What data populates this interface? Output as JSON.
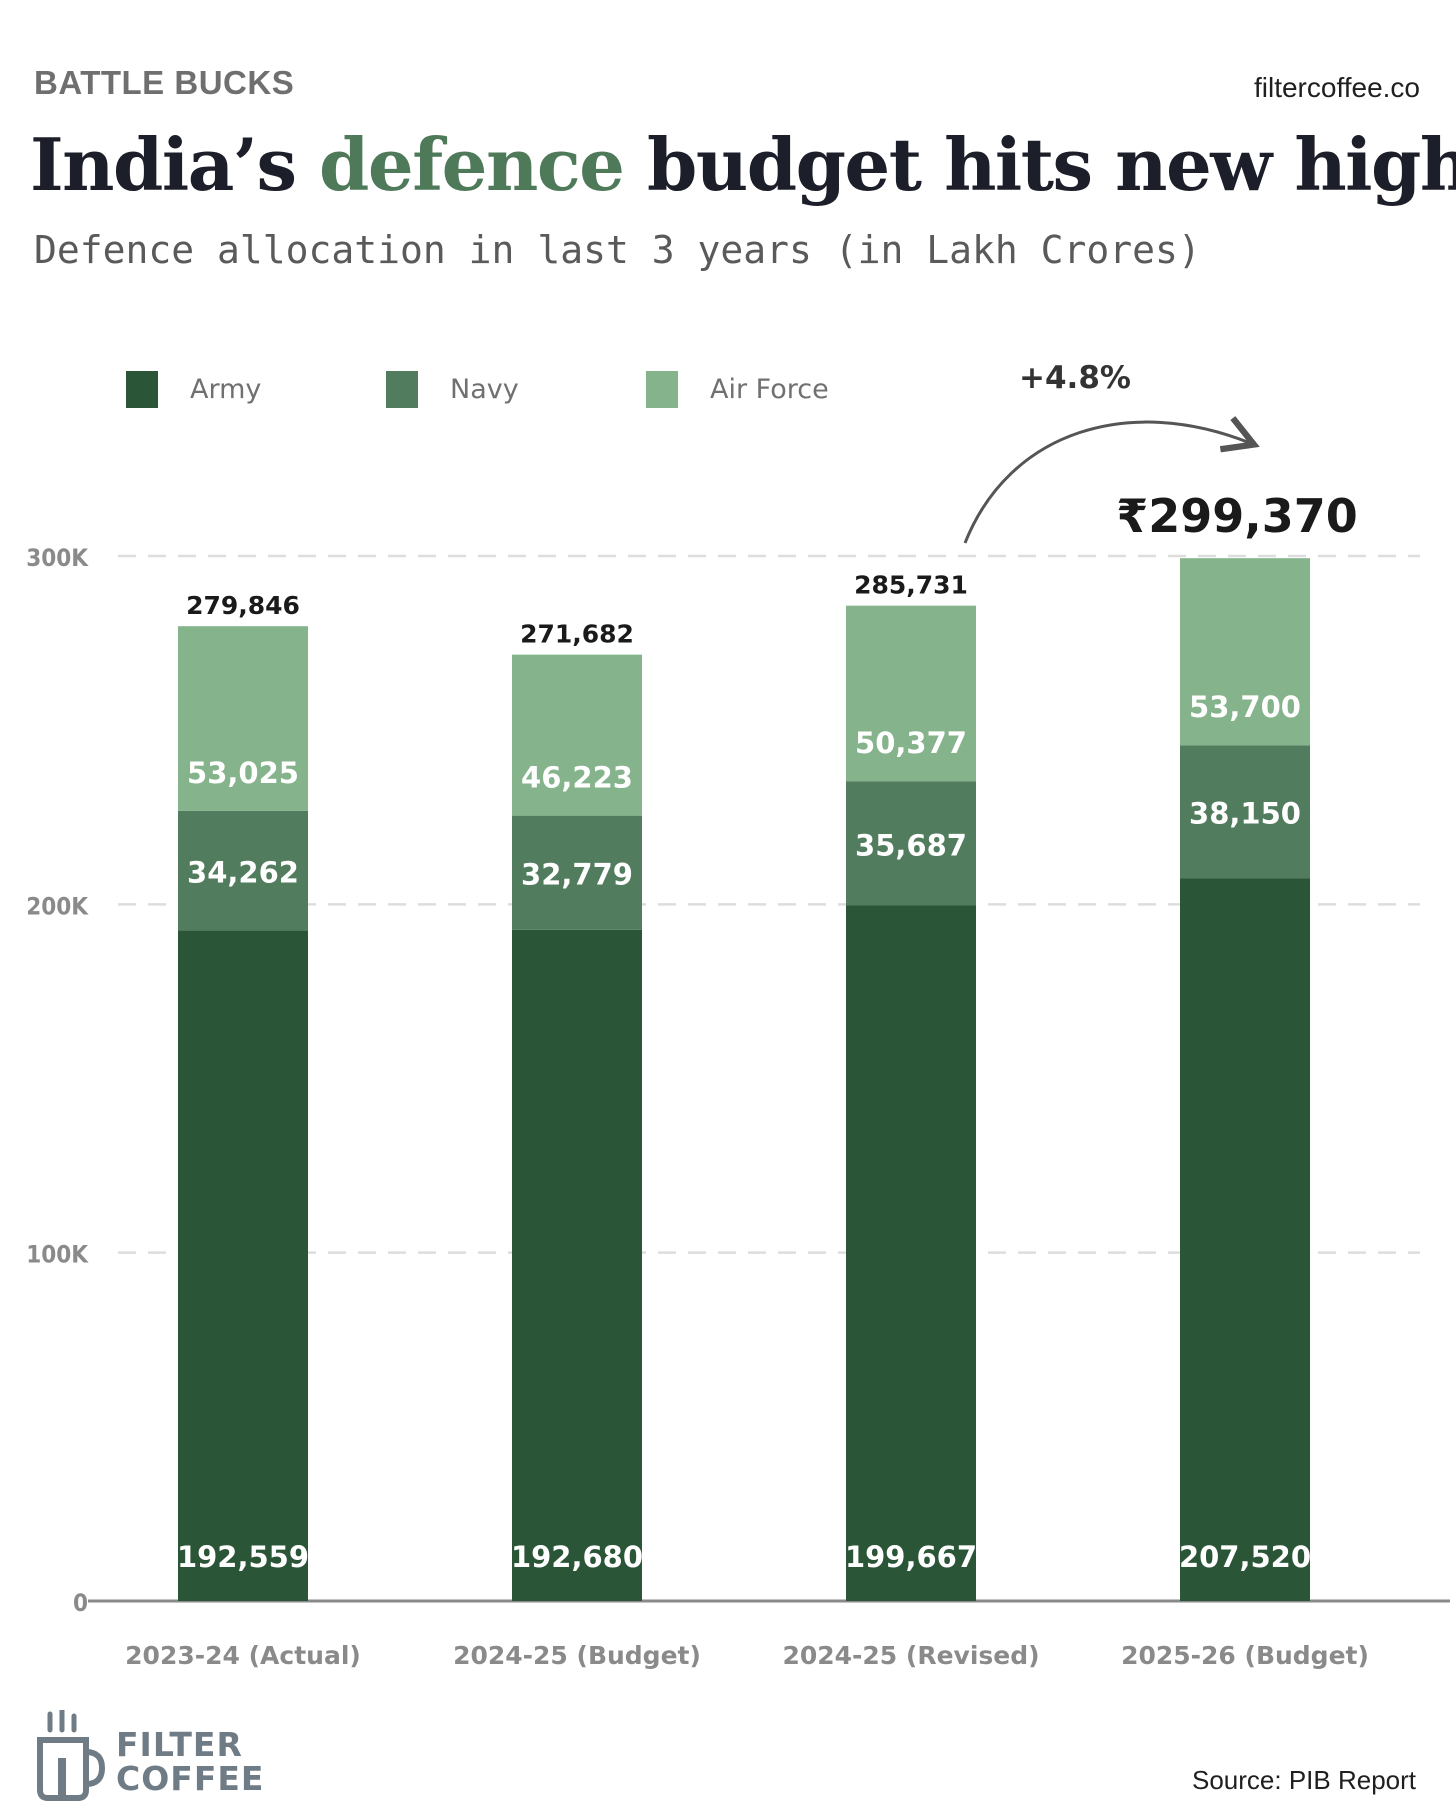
{
  "header": {
    "kicker": "BATTLE BUCKS",
    "site": "filtercoffee.co",
    "title_prefix": "India’s ",
    "title_accent": "defence",
    "title_suffix": " budget hits new highs",
    "subtitle": "Defence allocation in last 3 years (in Lakh Crores)"
  },
  "chart_data": {
    "type": "bar",
    "stacked": true,
    "categories": [
      "2023-24 (Actual)",
      "2024-25 (Budget)",
      "2024-25 (Revised)",
      "2025-26 (Budget)"
    ],
    "series": [
      {
        "name": "Army",
        "values": [
          192559,
          192680,
          199667,
          207520
        ],
        "color": "#2a5537"
      },
      {
        "name": "Navy",
        "values": [
          34262,
          32779,
          35687,
          38150
        ],
        "color": "#517c5d"
      },
      {
        "name": "Air Force",
        "values": [
          53025,
          46223,
          50377,
          53700
        ],
        "color": "#84b38c"
      }
    ],
    "totals": [
      "279,846",
      "271,682",
      "285,731",
      "₹299,370"
    ],
    "value_labels": [
      [
        "192,559",
        "192,680",
        "199,667",
        "207,520"
      ],
      [
        "34,262",
        "32,779",
        "35,687",
        "38,150"
      ],
      [
        "53,025",
        "46,223",
        "50,377",
        "53,700"
      ]
    ],
    "y_ticks": [
      0,
      100000,
      200000,
      300000
    ],
    "y_tick_labels": [
      "0",
      "100K",
      "200K",
      "300K"
    ],
    "ylim": [
      0,
      300000
    ],
    "grid": true,
    "legend_position": "top-left",
    "annotation": "+4.8%"
  },
  "brand": {
    "logo_line1": "FILTER",
    "logo_line2": "COFFEE",
    "source": "Source: PIB Report"
  }
}
